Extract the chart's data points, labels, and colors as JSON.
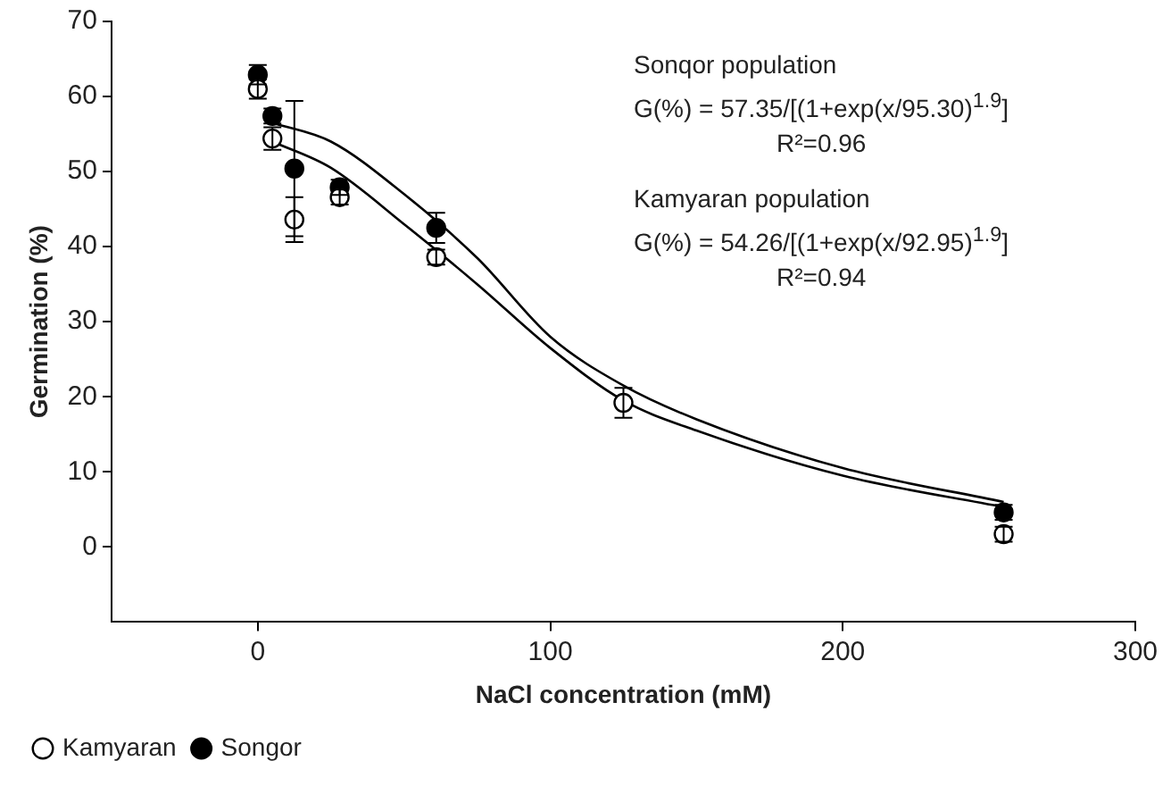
{
  "chart_data": {
    "type": "scatter",
    "xlabel": "NaCl concentration (mM)",
    "ylabel": "Germination (%)",
    "xlim": [
      -50,
      300
    ],
    "xticks": [
      0,
      100,
      200,
      300
    ],
    "ylim": [
      -10,
      70
    ],
    "yticks": [
      0,
      10,
      20,
      30,
      40,
      50,
      60,
      70
    ],
    "grid": false,
    "legend": "bottom left",
    "marker": "circle",
    "series": [
      {
        "name": "Songor",
        "color": "#000000",
        "x": [
          0,
          5,
          12.5,
          28,
          61,
          125,
          255
        ],
        "values": [
          62.9,
          57.4,
          50.4,
          47.9,
          42.5,
          null,
          4.6
        ],
        "errors": [
          1.3,
          1,
          9,
          1,
          2,
          null,
          1
        ]
      },
      {
        "name": "Kamyaran",
        "color": "#ffffff",
        "x": [
          0,
          5,
          12.5,
          28,
          61,
          125,
          255
        ],
        "values": [
          61.0,
          54.4,
          43.6,
          46.6,
          38.6,
          19.2,
          1.7
        ],
        "errors": [
          1.3,
          1.5,
          3,
          1,
          1,
          2,
          1
        ]
      },
      {
        "type": "line",
        "color": "#000000",
        "marker": "none",
        "x": [
          5,
          25,
          50,
          75,
          100,
          125,
          150,
          200,
          255
        ],
        "values": [
          56.5,
          54,
          47,
          38.5,
          28,
          21.5,
          17,
          10.5,
          6
        ]
      },
      {
        "type": "line",
        "color": "#000000",
        "marker": "none",
        "x": [
          5,
          25,
          50,
          75,
          100,
          125,
          150,
          200,
          255
        ],
        "values": [
          54,
          50.5,
          43,
          35,
          26.5,
          19.5,
          15.5,
          9.5,
          5.3
        ]
      }
    ],
    "annotations": [
      "Sonqor population",
      "G(%) = 57.35/[(1+exp(x/95.30)$^{1.9}$]",
      "R²=0.96",
      "Kamyaran population",
      "G(%) = 54.26/[(1+exp(x/92.95)$^{1.9}$]",
      "R²=0.94"
    ]
  }
}
